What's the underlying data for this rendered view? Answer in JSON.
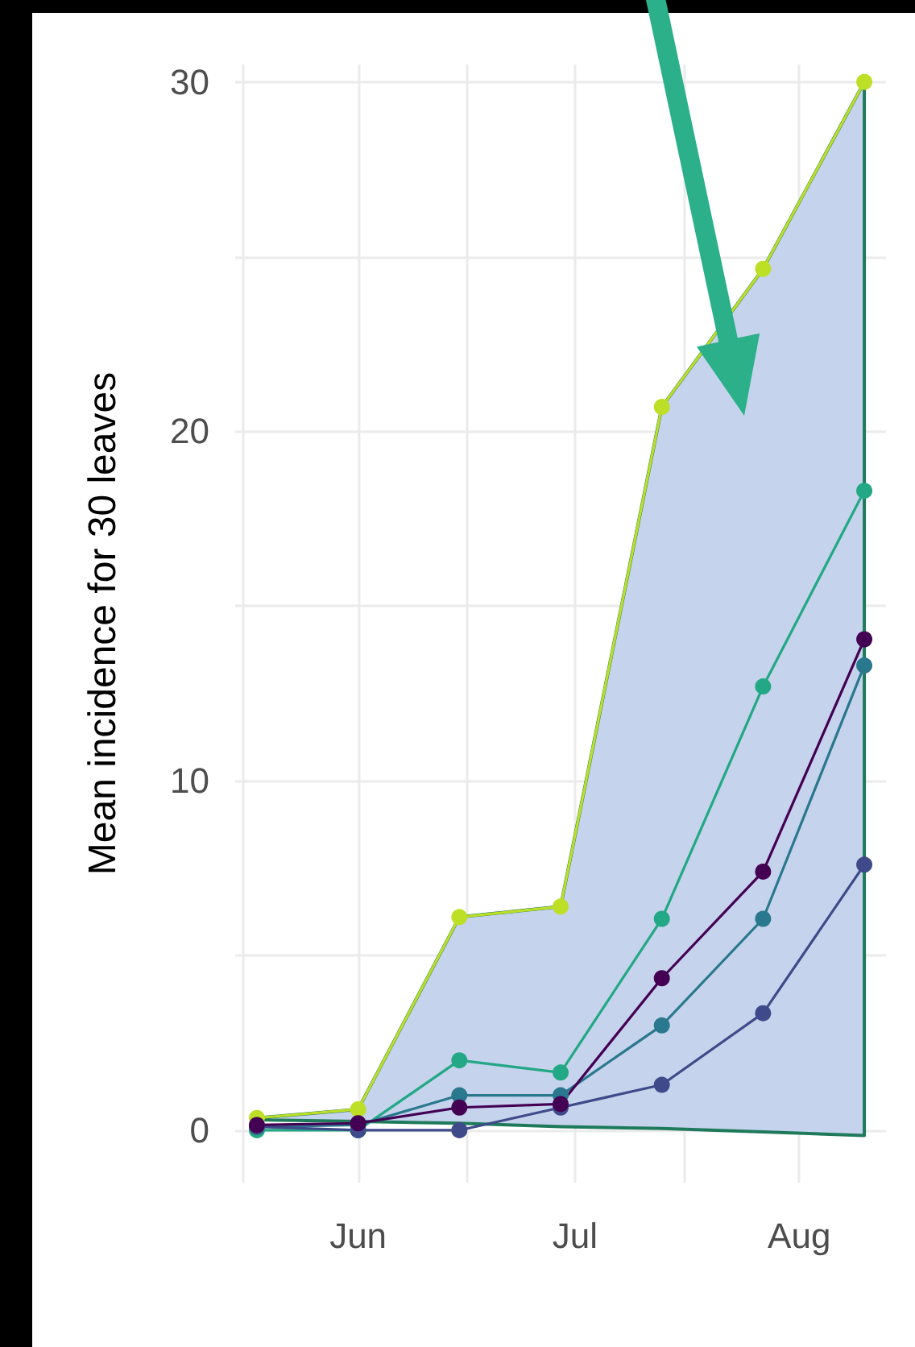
{
  "chart_data": {
    "type": "line",
    "ylabel": "Mean incidence for 30 leaves",
    "x": [
      "--05-18",
      "--06-01",
      "--06-15",
      "--06-29",
      "--07-13",
      "--07-27",
      "--08-10"
    ],
    "xlim": [
      "--05-15",
      "--08-13"
    ],
    "xticks": [
      {
        "value": "--05-16",
        "label": null
      },
      {
        "value": "--06-01",
        "label": "Jun"
      },
      {
        "value": "--06-16",
        "label": null
      },
      {
        "value": "--07-01",
        "label": "Jul"
      },
      {
        "value": "--07-16",
        "label": null
      },
      {
        "value": "--08-01",
        "label": "Aug"
      }
    ],
    "ylim": [
      -1.5,
      30.5
    ],
    "yticks": [
      0,
      {
        "value": 5,
        "label": null
      },
      10,
      {
        "value": 15,
        "label": null
      },
      20,
      {
        "value": 25,
        "label": null
      },
      30
    ],
    "grid": true,
    "marker": "circle",
    "line_style": "solid",
    "series": [
      {
        "color": "#bddf26",
        "values": [
          0.35,
          0.6,
          6.1,
          6.4,
          20.7,
          24.65,
          30
        ],
        "upper": [
          0.35,
          0.6,
          6.1,
          6.4,
          20.7,
          24.65,
          30
        ],
        "lower": [
          0.3,
          0.25,
          0.2,
          0.1,
          0.05,
          -0.05,
          -0.15
        ]
      },
      {
        "color": "#22a884",
        "values": [
          0,
          0,
          2,
          1.65,
          6.05,
          12.7,
          18.3
        ]
      },
      {
        "color": "#2a788e",
        "values": [
          0.1,
          0.15,
          1,
          1,
          3,
          6.05,
          13.3
        ]
      },
      {
        "color": "#3e4a89",
        "values": [
          0.1,
          0,
          0,
          0.65,
          1.3,
          3.35,
          7.6
        ]
      },
      {
        "color": "#440154",
        "values": [
          0.15,
          0.2,
          0.65,
          0.75,
          4.35,
          7.4,
          14.05
        ]
      }
    ]
  }
}
